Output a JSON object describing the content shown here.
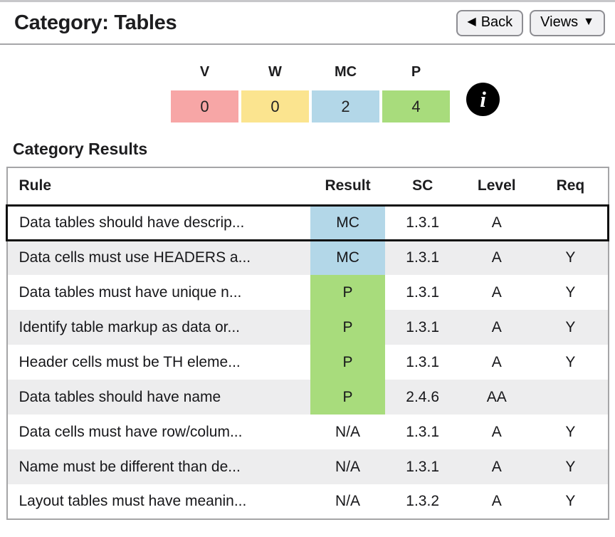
{
  "header": {
    "title": "Category: Tables",
    "back_icon": "◀",
    "back_label": "Back",
    "views_label": "Views",
    "views_icon": "▼"
  },
  "summary": {
    "columns": [
      {
        "key": "V",
        "value": "0",
        "color": "#f7a6a6"
      },
      {
        "key": "W",
        "value": "0",
        "color": "#fbe48f"
      },
      {
        "key": "MC",
        "value": "2",
        "color": "#b3d7e8"
      },
      {
        "key": "P",
        "value": "4",
        "color": "#a8dc7c"
      }
    ],
    "info_icon": "i"
  },
  "results": {
    "heading": "Category Results",
    "table": {
      "headers": [
        "Rule",
        "Result",
        "SC",
        "Level",
        "Req"
      ],
      "result_colors": {
        "MC": "#b3d7e8",
        "P": "#a8dc7c",
        "N/A": ""
      },
      "rows": [
        {
          "rule": "Data tables should have descrip...",
          "result": "MC",
          "sc": "1.3.1",
          "level": "A",
          "req": "",
          "selected": true
        },
        {
          "rule": "Data cells must use HEADERS a...",
          "result": "MC",
          "sc": "1.3.1",
          "level": "A",
          "req": "Y"
        },
        {
          "rule": "Data tables must have unique n...",
          "result": "P",
          "sc": "1.3.1",
          "level": "A",
          "req": "Y"
        },
        {
          "rule": "Identify table markup as data or...",
          "result": "P",
          "sc": "1.3.1",
          "level": "A",
          "req": "Y"
        },
        {
          "rule": "Header cells must be TH eleme...",
          "result": "P",
          "sc": "1.3.1",
          "level": "A",
          "req": "Y"
        },
        {
          "rule": "Data tables should have name",
          "result": "P",
          "sc": "2.4.6",
          "level": "AA",
          "req": ""
        },
        {
          "rule": "Data cells must have row/colum...",
          "result": "N/A",
          "sc": "1.3.1",
          "level": "A",
          "req": "Y"
        },
        {
          "rule": "Name must be different than de...",
          "result": "N/A",
          "sc": "1.3.1",
          "level": "A",
          "req": "Y"
        },
        {
          "rule": "Layout tables must have meanin...",
          "result": "N/A",
          "sc": "1.3.2",
          "level": "A",
          "req": "Y"
        }
      ]
    }
  }
}
